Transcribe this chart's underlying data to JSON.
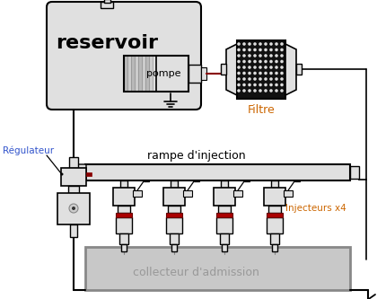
{
  "bg_color": "#ffffff",
  "reservoir_label": "reservoir",
  "pompe_label": "pompe",
  "filtre_label": "Filtre",
  "regulateur_label": "Régulateur",
  "rampe_label": "rampe d'injection",
  "injecteurs_label": "Injecteurs x4",
  "collecteur_label": "collecteur d'admission",
  "label_color_orange": "#cc6600",
  "label_color_gray": "#999999",
  "label_color_black": "#000000",
  "label_color_blue": "#3355cc",
  "line_color": "#000000",
  "fill_light": "#e0e0e0",
  "fill_white": "#ffffff",
  "fill_red": "#aa0000",
  "fill_dot": "#222222",
  "wire_color": "#111111",
  "gray_col": "#aaaaaa"
}
